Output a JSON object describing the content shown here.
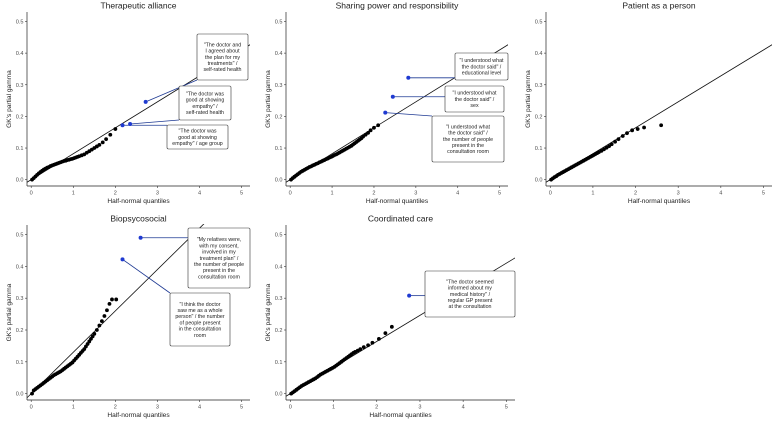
{
  "chart_data": [
    {
      "type": "scatter",
      "title": "Therapeutic alliance",
      "xlabel": "Half-normal quantiles",
      "ylabel": "GK's partial gamma",
      "xlim": [
        -0.1,
        5.2
      ],
      "ylim": [
        -0.02,
        0.53
      ],
      "xticks": [
        "0",
        "1",
        "2",
        "3",
        "4",
        "5"
      ],
      "yticks": [
        "0.0",
        "0.1",
        "0.2",
        "0.3",
        "0.4",
        "0.5"
      ],
      "reference_line": {
        "slope": 0.082,
        "intercept": 0.0
      },
      "points": [
        [
          0.02,
          0.0
        ],
        [
          0.06,
          0.005
        ],
        [
          0.1,
          0.01
        ],
        [
          0.14,
          0.015
        ],
        [
          0.18,
          0.02
        ],
        [
          0.22,
          0.024
        ],
        [
          0.26,
          0.028
        ],
        [
          0.3,
          0.032
        ],
        [
          0.34,
          0.035
        ],
        [
          0.38,
          0.038
        ],
        [
          0.42,
          0.04
        ],
        [
          0.46,
          0.043
        ],
        [
          0.5,
          0.045
        ],
        [
          0.54,
          0.047
        ],
        [
          0.58,
          0.049
        ],
        [
          0.62,
          0.051
        ],
        [
          0.66,
          0.053
        ],
        [
          0.7,
          0.055
        ],
        [
          0.74,
          0.057
        ],
        [
          0.78,
          0.059
        ],
        [
          0.82,
          0.06
        ],
        [
          0.86,
          0.062
        ],
        [
          0.9,
          0.063
        ],
        [
          0.94,
          0.065
        ],
        [
          0.98,
          0.066
        ],
        [
          1.02,
          0.068
        ],
        [
          1.06,
          0.07
        ],
        [
          1.1,
          0.072
        ],
        [
          1.14,
          0.074
        ],
        [
          1.2,
          0.077
        ],
        [
          1.26,
          0.08
        ],
        [
          1.32,
          0.085
        ],
        [
          1.38,
          0.09
        ],
        [
          1.44,
          0.095
        ],
        [
          1.5,
          0.1
        ],
        [
          1.56,
          0.105
        ],
        [
          1.62,
          0.11
        ],
        [
          1.7,
          0.118
        ],
        [
          1.78,
          0.128
        ],
        [
          1.88,
          0.142
        ],
        [
          2.0,
          0.16
        ]
      ],
      "highlighted_points": [
        [
          2.17,
          0.172
        ],
        [
          2.35,
          0.176
        ],
        [
          2.72,
          0.246
        ]
      ],
      "annotations": [
        {
          "lines": [
            "\"The doctor and",
            "I agreed about",
            "the plan for my",
            "treatments\" /",
            "self-rated health"
          ]
        },
        {
          "lines": [
            "\"The doctor was",
            "good at showing",
            "empathy\" /",
            "self-rated health"
          ]
        },
        {
          "lines": [
            "\"The doctor was",
            "good at showing",
            "empathy\" / age group"
          ]
        }
      ]
    },
    {
      "type": "scatter",
      "title": "Sharing power and responsibility",
      "xlabel": "Half-normal quantiles",
      "ylabel": "GK's partial gamma",
      "xlim": [
        -0.1,
        5.2
      ],
      "ylim": [
        -0.02,
        0.53
      ],
      "xticks": [
        "0",
        "1",
        "2",
        "3",
        "4",
        "5"
      ],
      "yticks": [
        "0.0",
        "0.1",
        "0.2",
        "0.3",
        "0.4",
        "0.5"
      ],
      "reference_line": {
        "slope": 0.082,
        "intercept": 0.0
      },
      "points": [
        [
          0.02,
          0.0
        ],
        [
          0.06,
          0.005
        ],
        [
          0.1,
          0.009
        ],
        [
          0.14,
          0.013
        ],
        [
          0.18,
          0.017
        ],
        [
          0.22,
          0.021
        ],
        [
          0.26,
          0.025
        ],
        [
          0.3,
          0.028
        ],
        [
          0.34,
          0.031
        ],
        [
          0.38,
          0.034
        ],
        [
          0.42,
          0.037
        ],
        [
          0.46,
          0.04
        ],
        [
          0.5,
          0.042
        ],
        [
          0.54,
          0.045
        ],
        [
          0.58,
          0.047
        ],
        [
          0.62,
          0.05
        ],
        [
          0.66,
          0.052
        ],
        [
          0.7,
          0.055
        ],
        [
          0.74,
          0.057
        ],
        [
          0.78,
          0.06
        ],
        [
          0.82,
          0.062
        ],
        [
          0.86,
          0.065
        ],
        [
          0.9,
          0.067
        ],
        [
          0.94,
          0.07
        ],
        [
          0.98,
          0.072
        ],
        [
          1.02,
          0.075
        ],
        [
          1.06,
          0.078
        ],
        [
          1.1,
          0.08
        ],
        [
          1.14,
          0.083
        ],
        [
          1.18,
          0.086
        ],
        [
          1.22,
          0.089
        ],
        [
          1.26,
          0.092
        ],
        [
          1.3,
          0.095
        ],
        [
          1.34,
          0.098
        ],
        [
          1.38,
          0.101
        ],
        [
          1.42,
          0.104
        ],
        [
          1.46,
          0.107
        ],
        [
          1.5,
          0.111
        ],
        [
          1.54,
          0.115
        ],
        [
          1.58,
          0.119
        ],
        [
          1.62,
          0.123
        ],
        [
          1.66,
          0.127
        ],
        [
          1.7,
          0.131
        ],
        [
          1.74,
          0.136
        ],
        [
          1.8,
          0.142
        ],
        [
          1.86,
          0.148
        ],
        [
          1.92,
          0.156
        ],
        [
          2.0,
          0.164
        ],
        [
          2.1,
          0.172
        ]
      ],
      "highlighted_points": [
        [
          2.27,
          0.212
        ],
        [
          2.45,
          0.262
        ],
        [
          2.82,
          0.322
        ]
      ],
      "annotations": [
        {
          "lines": [
            "\"I understood what",
            "the doctor said\" /",
            "educational level"
          ]
        },
        {
          "lines": [
            "\"I understood what",
            "the doctor said\" /",
            "sex"
          ]
        },
        {
          "lines": [
            "\"I understood what",
            "the doctor said\" /",
            "the number of people",
            "present in the",
            "consultation room"
          ]
        }
      ]
    },
    {
      "type": "scatter",
      "title": "Patient as a person",
      "xlabel": "Half-normal quantiles",
      "ylabel": "GK's partial gamma",
      "xlim": [
        -0.1,
        5.2
      ],
      "ylim": [
        -0.02,
        0.53
      ],
      "xticks": [
        "0",
        "1",
        "2",
        "3",
        "4",
        "5"
      ],
      "yticks": [
        "0.0",
        "0.1",
        "0.2",
        "0.3",
        "0.4",
        "0.5"
      ],
      "reference_line": {
        "slope": 0.082,
        "intercept": 0.0
      },
      "points": [
        [
          0.02,
          0.0
        ],
        [
          0.06,
          0.004
        ],
        [
          0.1,
          0.008
        ],
        [
          0.14,
          0.011
        ],
        [
          0.18,
          0.015
        ],
        [
          0.22,
          0.018
        ],
        [
          0.26,
          0.021
        ],
        [
          0.3,
          0.024
        ],
        [
          0.34,
          0.027
        ],
        [
          0.38,
          0.03
        ],
        [
          0.42,
          0.033
        ],
        [
          0.46,
          0.036
        ],
        [
          0.5,
          0.039
        ],
        [
          0.54,
          0.042
        ],
        [
          0.58,
          0.045
        ],
        [
          0.62,
          0.048
        ],
        [
          0.66,
          0.051
        ],
        [
          0.7,
          0.054
        ],
        [
          0.74,
          0.057
        ],
        [
          0.78,
          0.06
        ],
        [
          0.82,
          0.063
        ],
        [
          0.86,
          0.066
        ],
        [
          0.9,
          0.069
        ],
        [
          0.94,
          0.072
        ],
        [
          0.98,
          0.075
        ],
        [
          1.02,
          0.078
        ],
        [
          1.06,
          0.081
        ],
        [
          1.1,
          0.084
        ],
        [
          1.14,
          0.087
        ],
        [
          1.2,
          0.091
        ],
        [
          1.26,
          0.096
        ],
        [
          1.32,
          0.101
        ],
        [
          1.38,
          0.106
        ],
        [
          1.44,
          0.112
        ],
        [
          1.52,
          0.12
        ],
        [
          1.6,
          0.128
        ],
        [
          1.7,
          0.138
        ],
        [
          1.8,
          0.147
        ],
        [
          1.92,
          0.156
        ],
        [
          2.05,
          0.16
        ],
        [
          2.2,
          0.165
        ],
        [
          2.6,
          0.172
        ]
      ],
      "highlighted_points": [],
      "annotations": []
    },
    {
      "type": "scatter",
      "title": "Biopsycosocial",
      "xlabel": "Half-normal quantiles",
      "ylabel": "GK's partial gamma",
      "xlim": [
        -0.1,
        5.2
      ],
      "ylim": [
        -0.02,
        0.53
      ],
      "xticks": [
        "0",
        "1",
        "2",
        "3",
        "4",
        "5"
      ],
      "yticks": [
        "0.0",
        "0.1",
        "0.2",
        "0.3",
        "0.4",
        "0.5"
      ],
      "reference_line": {
        "slope": 0.13,
        "intercept": 0.0
      },
      "points": [
        [
          0.02,
          0.0
        ],
        [
          0.06,
          0.01
        ],
        [
          0.1,
          0.014
        ],
        [
          0.14,
          0.018
        ],
        [
          0.18,
          0.022
        ],
        [
          0.22,
          0.026
        ],
        [
          0.26,
          0.03
        ],
        [
          0.3,
          0.034
        ],
        [
          0.34,
          0.038
        ],
        [
          0.38,
          0.042
        ],
        [
          0.42,
          0.046
        ],
        [
          0.46,
          0.05
        ],
        [
          0.5,
          0.054
        ],
        [
          0.54,
          0.058
        ],
        [
          0.58,
          0.061
        ],
        [
          0.62,
          0.064
        ],
        [
          0.66,
          0.067
        ],
        [
          0.7,
          0.07
        ],
        [
          0.74,
          0.074
        ],
        [
          0.78,
          0.078
        ],
        [
          0.82,
          0.082
        ],
        [
          0.86,
          0.086
        ],
        [
          0.9,
          0.09
        ],
        [
          0.94,
          0.094
        ],
        [
          0.98,
          0.098
        ],
        [
          1.02,
          0.104
        ],
        [
          1.06,
          0.11
        ],
        [
          1.1,
          0.116
        ],
        [
          1.14,
          0.122
        ],
        [
          1.18,
          0.128
        ],
        [
          1.22,
          0.134
        ],
        [
          1.26,
          0.14
        ],
        [
          1.3,
          0.148
        ],
        [
          1.34,
          0.156
        ],
        [
          1.38,
          0.164
        ],
        [
          1.42,
          0.172
        ],
        [
          1.46,
          0.18
        ],
        [
          1.5,
          0.188
        ],
        [
          1.56,
          0.2
        ],
        [
          1.62,
          0.214
        ],
        [
          1.68,
          0.228
        ],
        [
          1.74,
          0.244
        ],
        [
          1.8,
          0.262
        ],
        [
          1.86,
          0.282
        ],
        [
          1.92,
          0.296
        ],
        [
          2.02,
          0.296
        ]
      ],
      "highlighted_points": [
        [
          2.17,
          0.422
        ],
        [
          2.6,
          0.49
        ]
      ],
      "annotations": [
        {
          "lines": [
            "\"My relatives were,",
            "with my consent,",
            "involved in my",
            "treatment plan\" /",
            "the number of people",
            "present in the",
            "consultation room"
          ]
        },
        {
          "lines": [
            "\"I think the doctor",
            "saw me as a whole",
            "person\" / the number",
            "of people present",
            "in the consultation",
            "room"
          ]
        }
      ]
    },
    {
      "type": "scatter",
      "title": "Coordinated care",
      "xlabel": "Half-normal quantiles",
      "ylabel": "GK's partial gamma",
      "xlim": [
        -0.1,
        5.2
      ],
      "ylim": [
        -0.02,
        0.53
      ],
      "xticks": [
        "0",
        "1",
        "2",
        "3",
        "4",
        "5"
      ],
      "yticks": [
        "0.0",
        "0.1",
        "0.2",
        "0.3",
        "0.4",
        "0.5"
      ],
      "reference_line": {
        "slope": 0.082,
        "intercept": 0.0
      },
      "points": [
        [
          0.02,
          0.0
        ],
        [
          0.06,
          0.004
        ],
        [
          0.1,
          0.008
        ],
        [
          0.14,
          0.012
        ],
        [
          0.18,
          0.016
        ],
        [
          0.22,
          0.02
        ],
        [
          0.26,
          0.024
        ],
        [
          0.3,
          0.027
        ],
        [
          0.34,
          0.03
        ],
        [
          0.38,
          0.033
        ],
        [
          0.42,
          0.036
        ],
        [
          0.46,
          0.039
        ],
        [
          0.5,
          0.042
        ],
        [
          0.54,
          0.045
        ],
        [
          0.58,
          0.048
        ],
        [
          0.62,
          0.052
        ],
        [
          0.66,
          0.056
        ],
        [
          0.7,
          0.06
        ],
        [
          0.74,
          0.063
        ],
        [
          0.78,
          0.066
        ],
        [
          0.82,
          0.069
        ],
        [
          0.86,
          0.072
        ],
        [
          0.9,
          0.075
        ],
        [
          0.94,
          0.078
        ],
        [
          0.98,
          0.081
        ],
        [
          1.02,
          0.084
        ],
        [
          1.06,
          0.088
        ],
        [
          1.1,
          0.092
        ],
        [
          1.14,
          0.096
        ],
        [
          1.18,
          0.1
        ],
        [
          1.22,
          0.104
        ],
        [
          1.26,
          0.108
        ],
        [
          1.3,
          0.112
        ],
        [
          1.34,
          0.116
        ],
        [
          1.38,
          0.12
        ],
        [
          1.42,
          0.124
        ],
        [
          1.46,
          0.128
        ],
        [
          1.5,
          0.131
        ],
        [
          1.56,
          0.135
        ],
        [
          1.62,
          0.14
        ],
        [
          1.7,
          0.146
        ],
        [
          1.8,
          0.152
        ],
        [
          1.9,
          0.16
        ],
        [
          2.05,
          0.172
        ],
        [
          2.2,
          0.19
        ],
        [
          2.35,
          0.21
        ]
      ],
      "highlighted_points": [
        [
          2.75,
          0.308
        ]
      ],
      "annotations": [
        {
          "lines": [
            "\"The doctor seemed",
            "informed about my",
            "medical history\" /",
            "regular GP present",
            "at the consultation"
          ]
        }
      ]
    }
  ]
}
